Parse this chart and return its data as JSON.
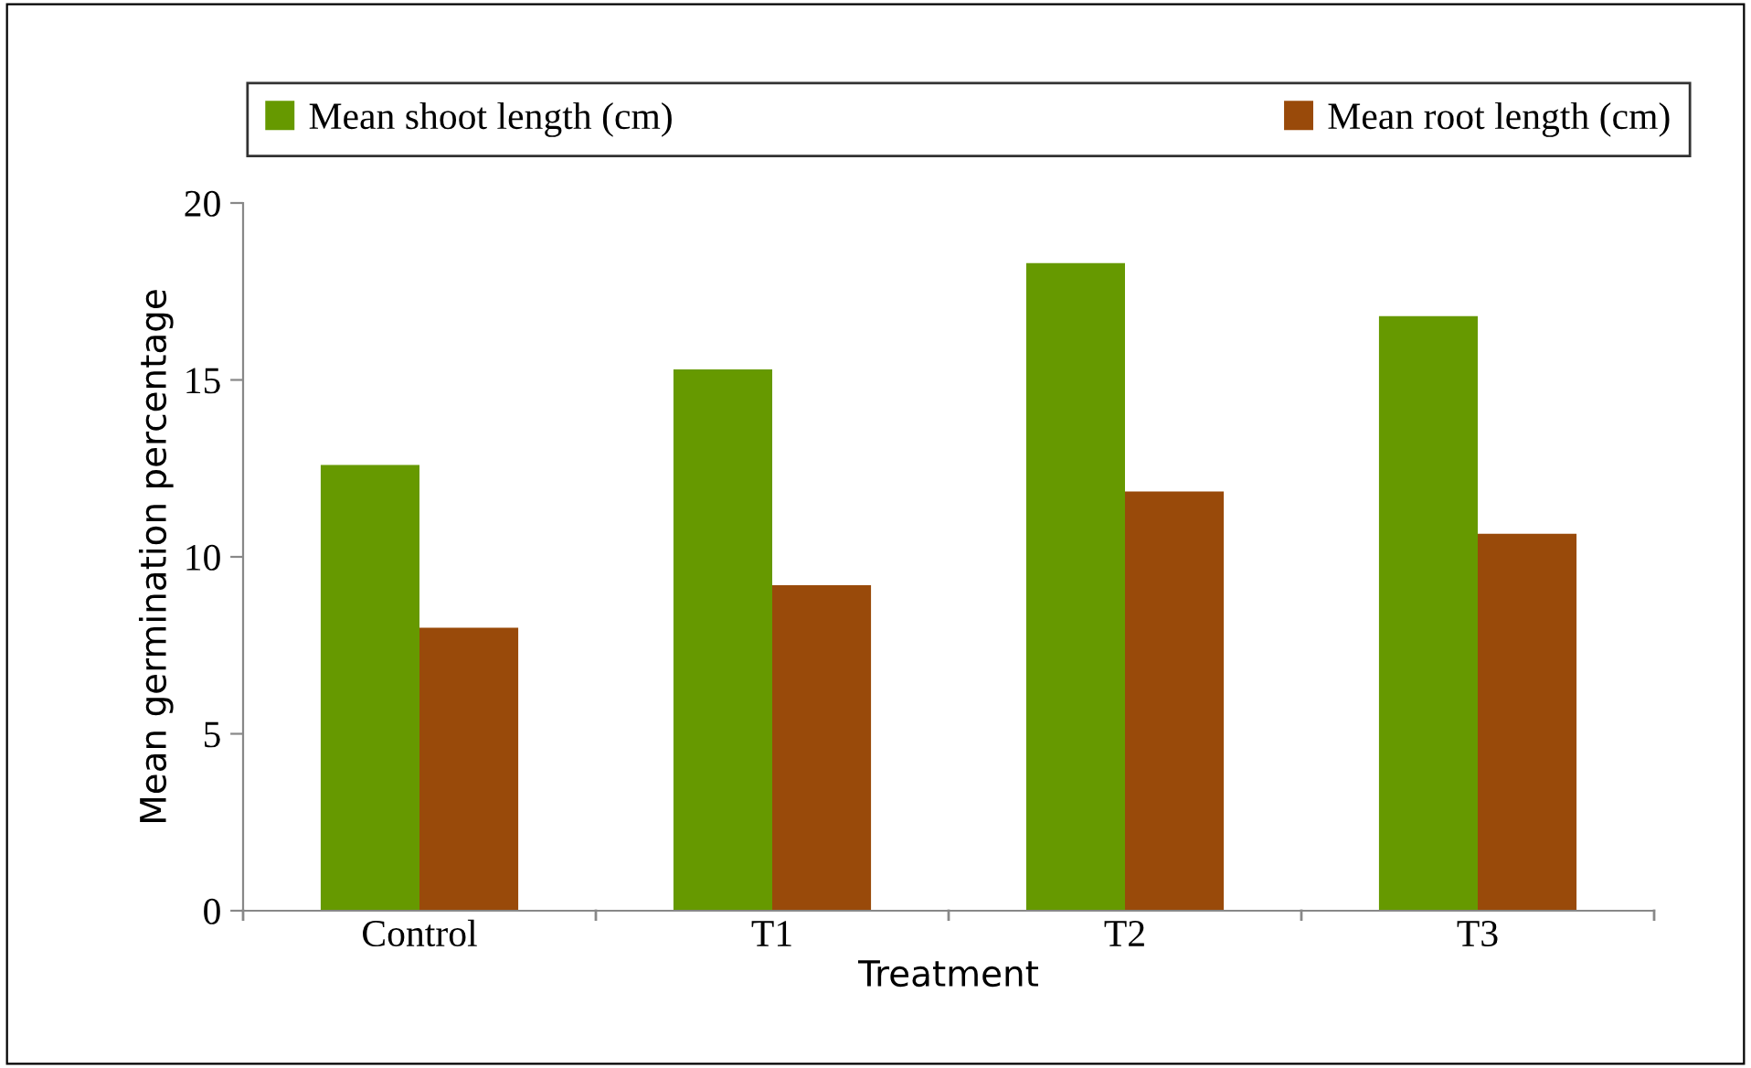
{
  "chart_data": {
    "type": "bar",
    "xlabel": "Treatment",
    "ylabel": "Mean germination percentage",
    "categories": [
      "Control",
      "T1",
      "T2",
      "T3"
    ],
    "series": [
      {
        "name": "Mean shoot length (cm)",
        "color": "#669900",
        "values": [
          12.6,
          15.3,
          18.3,
          16.8
        ]
      },
      {
        "name": "Mean root length (cm)",
        "color": "#994a0a",
        "values": [
          8.0,
          9.2,
          11.85,
          10.65
        ]
      }
    ],
    "ylim": [
      0,
      20
    ],
    "yticks": [
      0,
      5,
      10,
      15,
      20
    ],
    "grid": false,
    "legend": "top"
  }
}
